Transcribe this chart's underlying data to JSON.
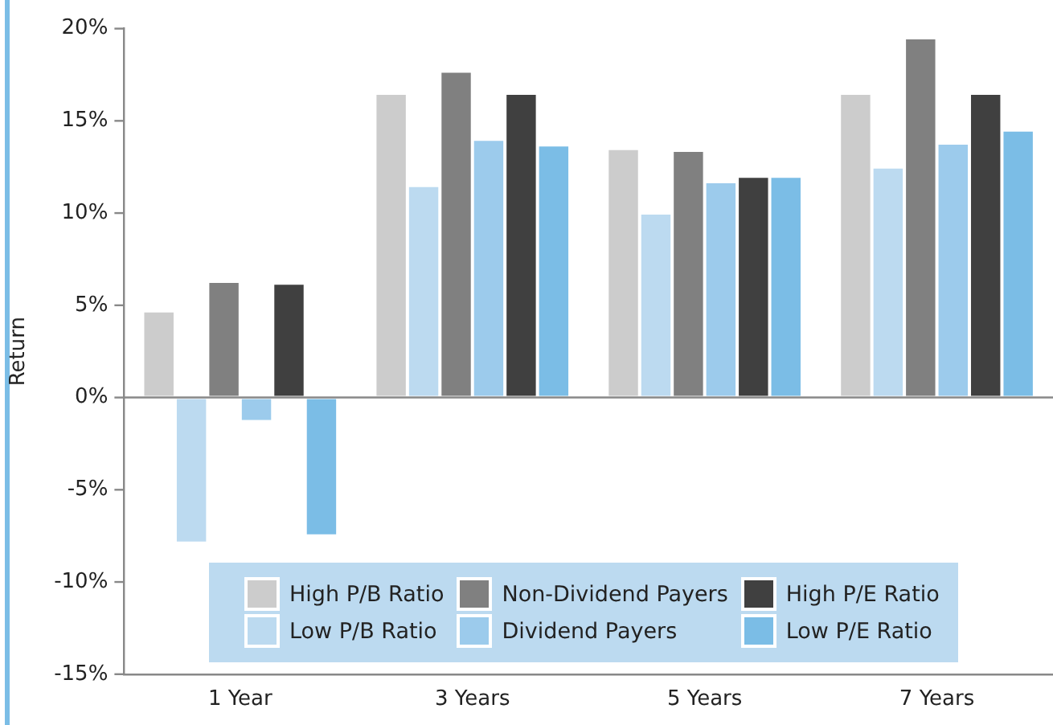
{
  "chart_data": {
    "type": "bar",
    "ylabel": "Return",
    "categories": [
      "1 Year",
      "3 Years",
      "5 Years",
      "7 Years"
    ],
    "series": [
      {
        "name": "High P/B Ratio",
        "color": "#cccccc",
        "values": [
          4.7,
          16.5,
          13.5,
          16.5
        ]
      },
      {
        "name": "Low P/B Ratio",
        "color": "#bcdaf0",
        "values": [
          -7.9,
          11.5,
          10.0,
          12.5
        ]
      },
      {
        "name": "Non-Dividend Payers",
        "color": "#808080",
        "values": [
          6.3,
          17.7,
          13.4,
          19.5
        ]
      },
      {
        "name": "Dividend Payers",
        "color": "#9ccbec",
        "values": [
          -1.3,
          14.0,
          11.7,
          13.8
        ]
      },
      {
        "name": "High P/E Ratio",
        "color": "#404040",
        "values": [
          6.2,
          16.5,
          12.0,
          16.5
        ]
      },
      {
        "name": "Low P/E Ratio",
        "color": "#7bbde6",
        "values": [
          -7.5,
          13.7,
          12.0,
          14.5
        ]
      }
    ],
    "ylim": [
      -15,
      20
    ],
    "yticks": [
      {
        "value": -15,
        "label": "-15%"
      },
      {
        "value": -10,
        "label": "-10%"
      },
      {
        "value": -5,
        "label": "-5%"
      },
      {
        "value": 0,
        "label": "0%"
      },
      {
        "value": 5,
        "label": "5%"
      },
      {
        "value": 10,
        "label": "10%"
      },
      {
        "value": 15,
        "label": "15%"
      },
      {
        "value": 20,
        "label": "20%"
      }
    ],
    "ref_lines": [
      {
        "axis": "y",
        "value": 0,
        "color": "#888888"
      }
    ],
    "grid": false,
    "legend": "bottom"
  }
}
